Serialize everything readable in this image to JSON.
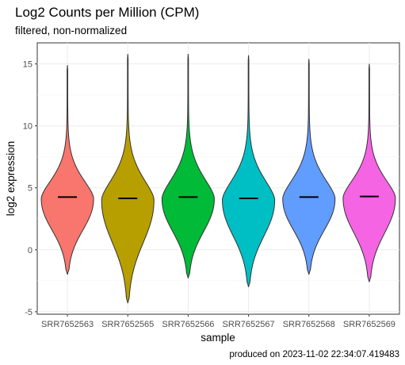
{
  "chart_data": {
    "type": "violin",
    "title": "Log2 Counts per Million (CPM)",
    "subtitle": "filtered, non-normalized",
    "xlabel": "sample",
    "ylabel": "log2 expression",
    "caption": "produced on 2023-11-02 22:34:07.419483",
    "ylim": [
      -5.2,
      16.7
    ],
    "yticks": [
      -5,
      0,
      5,
      10,
      15
    ],
    "grid": true,
    "legend": "none",
    "categories": [
      "SRR7652563",
      "SRR7652565",
      "SRR7652566",
      "SRR7652567",
      "SRR7652568",
      "SRR7652569"
    ],
    "series": [
      {
        "sample": "SRR7652563",
        "min": -2.0,
        "max": 14.9,
        "median": 4.25,
        "color": "#F8766D"
      },
      {
        "sample": "SRR7652565",
        "min": -4.3,
        "max": 15.8,
        "median": 4.15,
        "color": "#B79F00"
      },
      {
        "sample": "SRR7652566",
        "min": -2.3,
        "max": 15.8,
        "median": 4.25,
        "color": "#00BA38"
      },
      {
        "sample": "SRR7652567",
        "min": -3.0,
        "max": 15.7,
        "median": 4.15,
        "color": "#00BFC4"
      },
      {
        "sample": "SRR7652568",
        "min": -2.0,
        "max": 15.4,
        "median": 4.25,
        "color": "#619CFF"
      },
      {
        "sample": "SRR7652569",
        "min": -2.6,
        "max": 15.0,
        "median": 4.3,
        "color": "#F564E3"
      }
    ]
  }
}
